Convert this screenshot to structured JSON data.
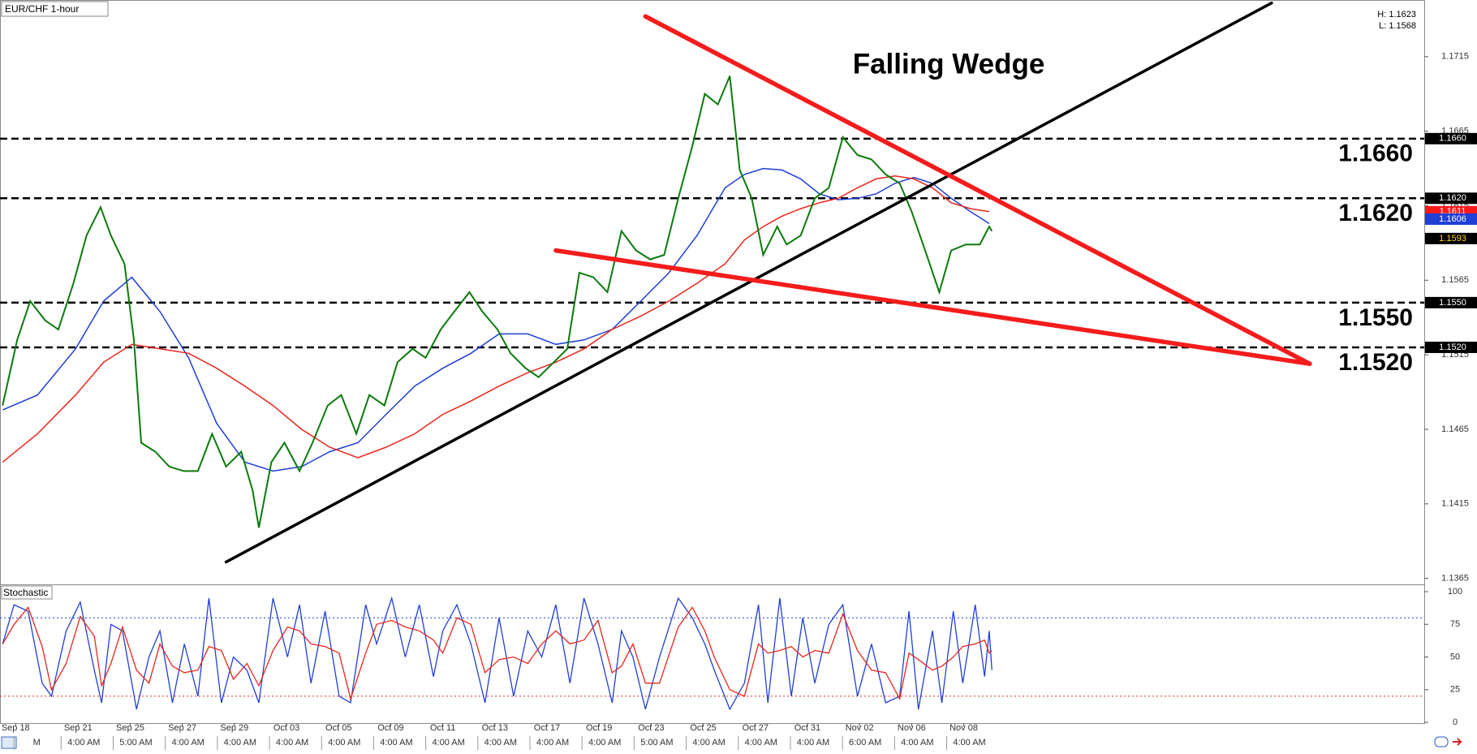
{
  "chart_data": [
    {
      "type": "line",
      "title": "EUR/CHF 1-hour",
      "annotation": "Falling Wedge",
      "high_label": "H: 1.1623",
      "low_label": "L: 1.1568",
      "xlim": [
        0,
        27.34
      ],
      "ylim": [
        1.1361,
        1.1753
      ],
      "yticks": [
        1.1715,
        1.1665,
        1.1615,
        1.1565,
        1.1515,
        1.1465,
        1.1415,
        1.1365
      ],
      "x": [
        0.05,
        0.33,
        0.58,
        0.87,
        1.12,
        1.41,
        1.66,
        1.93,
        2.13,
        2.39,
        2.57,
        2.71,
        2.98,
        3.25,
        3.53,
        3.8,
        4.07,
        4.34,
        4.63,
        4.85,
        4.97,
        5.21,
        5.46,
        5.75,
        6.0,
        6.29,
        6.55,
        6.84,
        7.09,
        7.38,
        7.63,
        7.92,
        8.17,
        8.46,
        8.72,
        9.01,
        9.26,
        9.55,
        9.8,
        10.09,
        10.34,
        10.63,
        10.89,
        11.12,
        11.39,
        11.66,
        11.93,
        12.21,
        12.48,
        12.75,
        13.02,
        13.29,
        13.53,
        13.78,
        14.01,
        14.2,
        14.43,
        14.65,
        14.92,
        15.1,
        15.37,
        15.64,
        15.91,
        16.18,
        16.46,
        16.73,
        17.0,
        17.27,
        17.5,
        17.76,
        18.03,
        18.26,
        18.54,
        18.81,
        18.99,
        19.04
      ],
      "series": [
        {
          "color": "#0b7a0b",
          "values": [
            1.1481,
            1.1525,
            1.1551,
            1.1538,
            1.1532,
            1.1563,
            1.1595,
            1.1614,
            1.1595,
            1.1576,
            1.1525,
            1.1456,
            1.145,
            1.144,
            1.1437,
            1.1437,
            1.1462,
            1.144,
            1.145,
            1.1424,
            1.1399,
            1.1443,
            1.1456,
            1.1437,
            1.1456,
            1.1481,
            1.1488,
            1.1462,
            1.1488,
            1.1481,
            1.151,
            1.1519,
            1.1513,
            1.1532,
            1.1544,
            1.1557,
            1.1544,
            1.1532,
            1.1516,
            1.1506,
            1.15,
            1.151,
            1.1519,
            1.157,
            1.1567,
            1.1557,
            1.1598,
            1.1585,
            1.1579,
            1.1582,
            1.162,
            1.1655,
            1.169,
            1.1683,
            1.1702,
            1.1639,
            1.162,
            1.1582,
            1.1601,
            1.1589,
            1.1595,
            1.162,
            1.1627,
            1.1661,
            1.1649,
            1.1646,
            1.1636,
            1.163,
            1.1611,
            1.1585,
            1.1557,
            1.1585,
            1.1589,
            1.1589,
            1.1601,
            1.1598
          ]
        }
      ],
      "ma_x": [
        0.05,
        0.72,
        1.45,
        1.99,
        2.53,
        3.07,
        3.62,
        4.16,
        4.7,
        5.24,
        5.79,
        6.33,
        6.87,
        7.41,
        7.96,
        8.5,
        9.04,
        9.58,
        10.13,
        10.67,
        11.21,
        11.75,
        12.3,
        12.84,
        13.38,
        13.92,
        14.29,
        14.65,
        15.01,
        15.37,
        15.73,
        16.09,
        16.46,
        16.82,
        17.18,
        17.54,
        17.9,
        18.26,
        18.63,
        18.99
      ],
      "moving_averages": [
        {
          "color": "#1f3fd6",
          "values": [
            1.1478,
            1.1488,
            1.1519,
            1.1551,
            1.1567,
            1.1544,
            1.1513,
            1.1469,
            1.1443,
            1.1437,
            1.144,
            1.145,
            1.1456,
            1.1475,
            1.1494,
            1.1506,
            1.1516,
            1.1529,
            1.1529,
            1.1522,
            1.1525,
            1.1532,
            1.1551,
            1.157,
            1.1595,
            1.1627,
            1.1636,
            1.164,
            1.1639,
            1.1633,
            1.1623,
            1.1619,
            1.162,
            1.1623,
            1.163,
            1.1634,
            1.163,
            1.162,
            1.1611,
            1.1603
          ]
        },
        {
          "color": "#e8261b",
          "values": [
            1.1443,
            1.1462,
            1.1488,
            1.151,
            1.1522,
            1.1519,
            1.1516,
            1.1506,
            1.1494,
            1.1481,
            1.1465,
            1.1453,
            1.1446,
            1.1453,
            1.1462,
            1.1475,
            1.1484,
            1.1494,
            1.1503,
            1.151,
            1.1519,
            1.1532,
            1.1541,
            1.1551,
            1.1563,
            1.1576,
            1.1592,
            1.1601,
            1.1608,
            1.1613,
            1.1617,
            1.162,
            1.1627,
            1.1633,
            1.1635,
            1.1633,
            1.1627,
            1.1617,
            1.1613,
            1.1611
          ]
        }
      ],
      "levels": [
        {
          "value": 1.166,
          "label": "1.1660"
        },
        {
          "value": 1.162,
          "label": "1.1620"
        },
        {
          "value": 1.155,
          "label": "1.1550"
        },
        {
          "value": 1.152,
          "label": "1.1520"
        }
      ],
      "price_markers": [
        {
          "value": 1.1611,
          "label": "1.1611",
          "color": "#ff1a1a"
        },
        {
          "value": 1.1606,
          "label": "1.1606",
          "color": "#1f3fd6"
        },
        {
          "value": 1.1593,
          "label": "1.1593",
          "color": "#000000"
        }
      ],
      "trendlines": [
        {
          "color": "#000000",
          "x": [
            4.34,
            24.41
          ],
          "values": [
            1.1376,
            1.1751
          ]
        },
        {
          "color": "#f41c1c",
          "x": [
            12.39,
            25.14
          ],
          "values": [
            1.1742,
            1.1509
          ]
        },
        {
          "color": "#f41c1c",
          "x": [
            10.67,
            25.14
          ],
          "values": [
            1.1585,
            1.1509
          ]
        }
      ]
    },
    {
      "type": "line",
      "title": "Stochastic",
      "xlim": [
        0,
        27.34
      ],
      "ylim": [
        0,
        100
      ],
      "yticks": [
        100,
        75,
        50,
        25,
        0
      ],
      "x": [
        0.05,
        0.27,
        0.54,
        0.81,
        0.99,
        1.27,
        1.54,
        1.81,
        1.95,
        2.13,
        2.35,
        2.62,
        2.86,
        3.07,
        3.31,
        3.54,
        3.8,
        4.01,
        4.25,
        4.48,
        4.74,
        4.97,
        5.24,
        5.52,
        5.75,
        5.97,
        6.24,
        6.51,
        6.73,
        7.02,
        7.23,
        7.52,
        7.78,
        8.05,
        8.32,
        8.5,
        8.77,
        9.04,
        9.31,
        9.58,
        9.86,
        10.13,
        10.4,
        10.67,
        10.94,
        11.21,
        11.48,
        11.75,
        11.93,
        12.15,
        12.39,
        12.66,
        13.02,
        13.29,
        13.53,
        13.71,
        14.01,
        14.29,
        14.56,
        14.74,
        14.97,
        15.19,
        15.41,
        15.64,
        15.91,
        16.18,
        16.46,
        16.73,
        17.0,
        17.27,
        17.45,
        17.63,
        17.9,
        18.08,
        18.3,
        18.48,
        18.72,
        18.9,
        18.99,
        19.04
      ],
      "series": [
        {
          "color": "#1f3fd6",
          "values": [
            60,
            90,
            85,
            30,
            20,
            70,
            92,
            40,
            15,
            75,
            70,
            10,
            50,
            70,
            15,
            60,
            20,
            95,
            15,
            50,
            40,
            15,
            95,
            50,
            90,
            30,
            85,
            20,
            15,
            90,
            60,
            95,
            50,
            90,
            35,
            70,
            90,
            60,
            15,
            80,
            20,
            70,
            50,
            90,
            30,
            95,
            60,
            15,
            70,
            50,
            10,
            50,
            95,
            80,
            60,
            40,
            10,
            30,
            90,
            15,
            95,
            20,
            80,
            30,
            75,
            90,
            20,
            60,
            15,
            20,
            85,
            10,
            70,
            15,
            85,
            30,
            90,
            35,
            70,
            40
          ]
        },
        {
          "color": "#e8261b",
          "values": [
            60,
            75,
            88,
            58,
            25,
            45,
            81,
            66,
            28,
            45,
            73,
            40,
            30,
            60,
            43,
            38,
            40,
            58,
            55,
            33,
            45,
            28,
            55,
            73,
            70,
            60,
            58,
            53,
            18,
            53,
            75,
            78,
            73,
            70,
            63,
            53,
            80,
            75,
            38,
            48,
            50,
            45,
            60,
            70,
            60,
            63,
            78,
            38,
            43,
            60,
            30,
            30,
            73,
            88,
            70,
            50,
            25,
            20,
            60,
            53,
            55,
            58,
            50,
            55,
            53,
            83,
            55,
            40,
            38,
            18,
            53,
            48,
            40,
            43,
            50,
            58,
            60,
            63,
            53,
            55
          ]
        }
      ],
      "levels": [
        {
          "value": 80,
          "color": "#1f3fd6"
        },
        {
          "value": 20,
          "color": "#e8261b"
        }
      ],
      "xticks": [
        {
          "value": 0.3,
          "label": "Sep 18"
        },
        {
          "value": 1.5,
          "label": "Sep 21"
        },
        {
          "value": 2.5,
          "label": "Sep 25"
        },
        {
          "value": 3.5,
          "label": "Sep 27"
        },
        {
          "value": 4.5,
          "label": "Sep 29"
        },
        {
          "value": 5.5,
          "label": "Oct 03"
        },
        {
          "value": 6.5,
          "label": "Oct 05"
        },
        {
          "value": 7.5,
          "label": "Oct 09"
        },
        {
          "value": 8.5,
          "label": "Oct 11"
        },
        {
          "value": 9.5,
          "label": "Oct 13"
        },
        {
          "value": 10.5,
          "label": "Oct 17"
        },
        {
          "value": 11.5,
          "label": "Oct 19"
        },
        {
          "value": 12.5,
          "label": "Oct 23"
        },
        {
          "value": 13.5,
          "label": "Oct 25"
        },
        {
          "value": 14.5,
          "label": "Oct 27"
        },
        {
          "value": 15.5,
          "label": "Oct 31"
        },
        {
          "value": 16.5,
          "label": "Nov 02"
        },
        {
          "value": 17.5,
          "label": "Nov 06"
        },
        {
          "value": 18.5,
          "label": "Nov 08"
        }
      ],
      "time_labels": [
        "M",
        "4:00 AM",
        "5:00 AM",
        "4:00 AM",
        "4:00 AM",
        "4:00 AM",
        "4:00 AM",
        "4:00 AM",
        "4:00 AM",
        "4:00 AM",
        "4:00 AM",
        "4:00 AM",
        "5:00 AM",
        "4:00 AM",
        "4:00 AM",
        "4:00 AM",
        "6:00 AM",
        "4:00 AM",
        "4:00 AM"
      ]
    }
  ]
}
